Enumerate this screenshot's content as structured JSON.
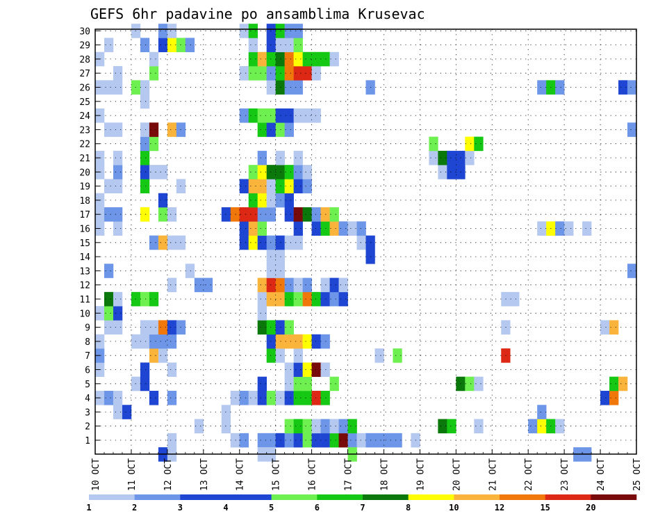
{
  "chart_data": {
    "type": "heatmap",
    "title": "GEFS 6hr padavine po ansamblima Krusevac",
    "xlabel": "",
    "ylabel": "",
    "x_tick_labels": [
      "10 OCT",
      "11 OCT",
      "12 OCT",
      "13 OCT",
      "14 OCT",
      "15 OCT",
      "16 OCT",
      "17 OCT",
      "18 OCT",
      "19 OCT",
      "20 OCT",
      "21 OCT",
      "22 OCT",
      "23 OCT",
      "24 OCT",
      "25 OCT"
    ],
    "y_tick_labels": [
      "1",
      "2",
      "3",
      "4",
      "5",
      "6",
      "7",
      "8",
      "9",
      "10",
      "11",
      "12",
      "13",
      "14",
      "15",
      "16",
      "17",
      "18",
      "19",
      "20",
      "21",
      "22",
      "23",
      "24",
      "25",
      "26",
      "27",
      "28",
      "29",
      "30"
    ],
    "time_step_hours": 6,
    "grid": true,
    "colorbar": {
      "labels": [
        "1",
        "2",
        "3",
        "4",
        "5",
        "6",
        "7",
        "8",
        "10",
        "12",
        "15",
        "20"
      ],
      "colors": [
        "#b4c8f0",
        "#6e96e8",
        "#1e46d2",
        "#1e46d2",
        "#6ef050",
        "#14c814",
        "#0a780a",
        "#ffff00",
        "#fab43c",
        "#f0780a",
        "#dc2814",
        "#780a0a"
      ]
    },
    "cells": [
      [
        1,
        8,
        1
      ],
      [
        1,
        15,
        1
      ],
      [
        1,
        16,
        2
      ],
      [
        1,
        18,
        2
      ],
      [
        1,
        19,
        2
      ],
      [
        1,
        20,
        3
      ],
      [
        1,
        21,
        2
      ],
      [
        1,
        22,
        3
      ],
      [
        1,
        23,
        5
      ],
      [
        1,
        24,
        3
      ],
      [
        1,
        25,
        3
      ],
      [
        1,
        26,
        6
      ],
      [
        1,
        27,
        20
      ],
      [
        1,
        28,
        2
      ],
      [
        1,
        29,
        1
      ],
      [
        1,
        30,
        2
      ],
      [
        1,
        31,
        2
      ],
      [
        1,
        32,
        2
      ],
      [
        1,
        33,
        2
      ],
      [
        1,
        35,
        1
      ],
      [
        2,
        11,
        1
      ],
      [
        2,
        14,
        1
      ],
      [
        2,
        21,
        5
      ],
      [
        2,
        22,
        6
      ],
      [
        2,
        23,
        5
      ],
      [
        2,
        24,
        1
      ],
      [
        2,
        25,
        2
      ],
      [
        2,
        26,
        1
      ],
      [
        2,
        27,
        2
      ],
      [
        2,
        28,
        6
      ],
      [
        2,
        38,
        7
      ],
      [
        2,
        39,
        6
      ],
      [
        2,
        42,
        1
      ],
      [
        2,
        48,
        2
      ],
      [
        2,
        49,
        8
      ],
      [
        2,
        50,
        6
      ],
      [
        2,
        51,
        1
      ],
      [
        3,
        2,
        1
      ],
      [
        3,
        3,
        3
      ],
      [
        3,
        14,
        1
      ],
      [
        3,
        49,
        2
      ],
      [
        4,
        0,
        1
      ],
      [
        4,
        1,
        2
      ],
      [
        4,
        2,
        1
      ],
      [
        4,
        6,
        3
      ],
      [
        4,
        8,
        2
      ],
      [
        4,
        15,
        1
      ],
      [
        4,
        16,
        2
      ],
      [
        4,
        17,
        1
      ],
      [
        4,
        18,
        3
      ],
      [
        4,
        19,
        5
      ],
      [
        4,
        20,
        1
      ],
      [
        4,
        21,
        3
      ],
      [
        4,
        22,
        6
      ],
      [
        4,
        23,
        6
      ],
      [
        4,
        24,
        15
      ],
      [
        4,
        25,
        6
      ],
      [
        4,
        56,
        3
      ],
      [
        4,
        57,
        12
      ],
      [
        5,
        4,
        1
      ],
      [
        5,
        5,
        3
      ],
      [
        5,
        18,
        3
      ],
      [
        5,
        21,
        1
      ],
      [
        5,
        22,
        5
      ],
      [
        5,
        23,
        5
      ],
      [
        5,
        26,
        5
      ],
      [
        5,
        40,
        7
      ],
      [
        5,
        41,
        5
      ],
      [
        5,
        42,
        1
      ],
      [
        5,
        57,
        6
      ],
      [
        5,
        58,
        10
      ],
      [
        6,
        0,
        1
      ],
      [
        6,
        5,
        3
      ],
      [
        6,
        8,
        1
      ],
      [
        6,
        21,
        1
      ],
      [
        6,
        22,
        3
      ],
      [
        6,
        23,
        8
      ],
      [
        6,
        24,
        20
      ],
      [
        6,
        25,
        1
      ],
      [
        7,
        0,
        2
      ],
      [
        7,
        6,
        10
      ],
      [
        7,
        7,
        1
      ],
      [
        7,
        19,
        6
      ],
      [
        7,
        20,
        1
      ],
      [
        7,
        22,
        1
      ],
      [
        7,
        31,
        1
      ],
      [
        7,
        33,
        5
      ],
      [
        7,
        45,
        15
      ],
      [
        8,
        0,
        1
      ],
      [
        8,
        4,
        1
      ],
      [
        8,
        5,
        1
      ],
      [
        8,
        6,
        2
      ],
      [
        8,
        7,
        2
      ],
      [
        8,
        8,
        2
      ],
      [
        8,
        19,
        3
      ],
      [
        8,
        20,
        10
      ],
      [
        8,
        21,
        10
      ],
      [
        8,
        22,
        10
      ],
      [
        8,
        23,
        8
      ],
      [
        8,
        24,
        3
      ],
      [
        8,
        25,
        2
      ],
      [
        9,
        1,
        1
      ],
      [
        9,
        2,
        1
      ],
      [
        9,
        5,
        1
      ],
      [
        9,
        6,
        1
      ],
      [
        9,
        7,
        12
      ],
      [
        9,
        8,
        3
      ],
      [
        9,
        9,
        2
      ],
      [
        9,
        18,
        7
      ],
      [
        9,
        19,
        6
      ],
      [
        9,
        20,
        3
      ],
      [
        9,
        21,
        5
      ],
      [
        9,
        45,
        1
      ],
      [
        9,
        56,
        1
      ],
      [
        9,
        57,
        10
      ],
      [
        10,
        0,
        1
      ],
      [
        10,
        1,
        5
      ],
      [
        10,
        2,
        3
      ],
      [
        10,
        18,
        1
      ],
      [
        11,
        1,
        7
      ],
      [
        11,
        2,
        1
      ],
      [
        11,
        4,
        6
      ],
      [
        11,
        5,
        5
      ],
      [
        11,
        6,
        6
      ],
      [
        11,
        18,
        1
      ],
      [
        11,
        19,
        10
      ],
      [
        11,
        20,
        10
      ],
      [
        11,
        21,
        6
      ],
      [
        11,
        22,
        5
      ],
      [
        11,
        23,
        12
      ],
      [
        11,
        24,
        6
      ],
      [
        11,
        25,
        3
      ],
      [
        11,
        26,
        2
      ],
      [
        11,
        27,
        3
      ],
      [
        11,
        45,
        1
      ],
      [
        11,
        46,
        1
      ],
      [
        12,
        8,
        1
      ],
      [
        12,
        11,
        2
      ],
      [
        12,
        12,
        2
      ],
      [
        12,
        18,
        10
      ],
      [
        12,
        19,
        15
      ],
      [
        12,
        20,
        12
      ],
      [
        12,
        21,
        2
      ],
      [
        12,
        22,
        1
      ],
      [
        12,
        23,
        2
      ],
      [
        12,
        25,
        1
      ],
      [
        12,
        26,
        3
      ],
      [
        12,
        27,
        1
      ],
      [
        13,
        1,
        2
      ],
      [
        13,
        10,
        1
      ],
      [
        13,
        19,
        1
      ],
      [
        13,
        20,
        1
      ],
      [
        13,
        59,
        2
      ],
      [
        14,
        19,
        1
      ],
      [
        14,
        20,
        1
      ],
      [
        14,
        30,
        3
      ],
      [
        15,
        6,
        2
      ],
      [
        15,
        7,
        10
      ],
      [
        15,
        8,
        1
      ],
      [
        15,
        9,
        1
      ],
      [
        15,
        16,
        3
      ],
      [
        15,
        17,
        8
      ],
      [
        15,
        18,
        3
      ],
      [
        15,
        19,
        2
      ],
      [
        15,
        20,
        3
      ],
      [
        15,
        21,
        1
      ],
      [
        15,
        22,
        1
      ],
      [
        15,
        29,
        1
      ],
      [
        15,
        30,
        3
      ],
      [
        16,
        0,
        1
      ],
      [
        16,
        2,
        1
      ],
      [
        16,
        16,
        3
      ],
      [
        16,
        17,
        10
      ],
      [
        16,
        18,
        5
      ],
      [
        16,
        22,
        3
      ],
      [
        16,
        24,
        3
      ],
      [
        16,
        25,
        6
      ],
      [
        16,
        26,
        10
      ],
      [
        16,
        27,
        2
      ],
      [
        16,
        28,
        1
      ],
      [
        16,
        29,
        2
      ],
      [
        16,
        49,
        1
      ],
      [
        16,
        50,
        8
      ],
      [
        16,
        51,
        2
      ],
      [
        16,
        52,
        1
      ],
      [
        16,
        54,
        1
      ],
      [
        17,
        0,
        1
      ],
      [
        17,
        1,
        2
      ],
      [
        17,
        2,
        2
      ],
      [
        17,
        5,
        8
      ],
      [
        17,
        7,
        5
      ],
      [
        17,
        8,
        1
      ],
      [
        17,
        14,
        3
      ],
      [
        17,
        15,
        12
      ],
      [
        17,
        16,
        15
      ],
      [
        17,
        17,
        15
      ],
      [
        17,
        18,
        2
      ],
      [
        17,
        19,
        2
      ],
      [
        17,
        21,
        3
      ],
      [
        17,
        22,
        20
      ],
      [
        17,
        23,
        7
      ],
      [
        17,
        24,
        2
      ],
      [
        17,
        25,
        10
      ],
      [
        17,
        26,
        5
      ],
      [
        18,
        0,
        1
      ],
      [
        18,
        7,
        3
      ],
      [
        18,
        17,
        6
      ],
      [
        18,
        18,
        8
      ],
      [
        18,
        19,
        1
      ],
      [
        18,
        20,
        2
      ],
      [
        18,
        21,
        3
      ],
      [
        19,
        1,
        1
      ],
      [
        19,
        2,
        1
      ],
      [
        19,
        5,
        6
      ],
      [
        19,
        9,
        1
      ],
      [
        19,
        16,
        3
      ],
      [
        19,
        17,
        10
      ],
      [
        19,
        18,
        10
      ],
      [
        19,
        19,
        1
      ],
      [
        19,
        20,
        6
      ],
      [
        19,
        21,
        8
      ],
      [
        19,
        22,
        3
      ],
      [
        19,
        23,
        2
      ],
      [
        20,
        0,
        1
      ],
      [
        20,
        2,
        2
      ],
      [
        20,
        5,
        3
      ],
      [
        20,
        6,
        1
      ],
      [
        20,
        7,
        1
      ],
      [
        20,
        17,
        5
      ],
      [
        20,
        18,
        8
      ],
      [
        20,
        19,
        7
      ],
      [
        20,
        20,
        7
      ],
      [
        20,
        21,
        6
      ],
      [
        20,
        22,
        2
      ],
      [
        20,
        23,
        1
      ],
      [
        20,
        38,
        1
      ],
      [
        20,
        39,
        3
      ],
      [
        20,
        40,
        3
      ],
      [
        21,
        0,
        1
      ],
      [
        21,
        2,
        1
      ],
      [
        21,
        5,
        6
      ],
      [
        21,
        18,
        2
      ],
      [
        21,
        20,
        1
      ],
      [
        21,
        22,
        1
      ],
      [
        21,
        37,
        1
      ],
      [
        21,
        38,
        7
      ],
      [
        21,
        39,
        3
      ],
      [
        21,
        40,
        3
      ],
      [
        21,
        41,
        1
      ],
      [
        22,
        5,
        2
      ],
      [
        22,
        6,
        5
      ],
      [
        22,
        37,
        5
      ],
      [
        22,
        41,
        8
      ],
      [
        22,
        42,
        6
      ],
      [
        23,
        1,
        1
      ],
      [
        23,
        2,
        1
      ],
      [
        23,
        5,
        1
      ],
      [
        23,
        6,
        20
      ],
      [
        23,
        8,
        10
      ],
      [
        23,
        9,
        2
      ],
      [
        23,
        18,
        6
      ],
      [
        23,
        19,
        3
      ],
      [
        23,
        20,
        5
      ],
      [
        23,
        21,
        2
      ],
      [
        23,
        59,
        2
      ],
      [
        24,
        0,
        1
      ],
      [
        24,
        16,
        2
      ],
      [
        24,
        17,
        6
      ],
      [
        24,
        18,
        5
      ],
      [
        24,
        19,
        5
      ],
      [
        24,
        20,
        3
      ],
      [
        24,
        21,
        3
      ],
      [
        24,
        22,
        1
      ],
      [
        24,
        23,
        1
      ],
      [
        24,
        24,
        1
      ],
      [
        25,
        5,
        1
      ],
      [
        26,
        0,
        1
      ],
      [
        26,
        1,
        1
      ],
      [
        26,
        2,
        1
      ],
      [
        26,
        4,
        5
      ],
      [
        26,
        5,
        1
      ],
      [
        26,
        19,
        1
      ],
      [
        26,
        20,
        7
      ],
      [
        26,
        21,
        2
      ],
      [
        26,
        22,
        2
      ],
      [
        26,
        30,
        2
      ],
      [
        26,
        49,
        2
      ],
      [
        26,
        50,
        6
      ],
      [
        26,
        51,
        2
      ],
      [
        26,
        58,
        3
      ],
      [
        26,
        59,
        2
      ],
      [
        27,
        2,
        1
      ],
      [
        27,
        6,
        5
      ],
      [
        27,
        16,
        1
      ],
      [
        27,
        17,
        5
      ],
      [
        27,
        18,
        5
      ],
      [
        27,
        19,
        2
      ],
      [
        27,
        20,
        6
      ],
      [
        27,
        21,
        12
      ],
      [
        27,
        22,
        15
      ],
      [
        27,
        23,
        15
      ],
      [
        27,
        24,
        1
      ],
      [
        28,
        0,
        1
      ],
      [
        28,
        6,
        1
      ],
      [
        28,
        17,
        6
      ],
      [
        28,
        18,
        10
      ],
      [
        28,
        19,
        6
      ],
      [
        28,
        20,
        7
      ],
      [
        28,
        21,
        12
      ],
      [
        28,
        22,
        8
      ],
      [
        28,
        23,
        6
      ],
      [
        28,
        24,
        6
      ],
      [
        28,
        25,
        6
      ],
      [
        28,
        26,
        1
      ],
      [
        29,
        1,
        1
      ],
      [
        29,
        5,
        2
      ],
      [
        29,
        7,
        3
      ],
      [
        29,
        8,
        8
      ],
      [
        29,
        9,
        5
      ],
      [
        29,
        10,
        2
      ],
      [
        29,
        17,
        1
      ],
      [
        29,
        19,
        3
      ],
      [
        29,
        20,
        1
      ],
      [
        29,
        21,
        1
      ],
      [
        29,
        22,
        5
      ],
      [
        30,
        4,
        1
      ],
      [
        30,
        7,
        2
      ],
      [
        30,
        8,
        1
      ],
      [
        30,
        16,
        1
      ],
      [
        30,
        17,
        6
      ],
      [
        30,
        19,
        3
      ],
      [
        30,
        20,
        6
      ],
      [
        30,
        21,
        2
      ],
      [
        30,
        22,
        2
      ],
      [
        0,
        7,
        3
      ],
      [
        0,
        8,
        1
      ],
      [
        0,
        18,
        1
      ],
      [
        0,
        19,
        1
      ],
      [
        0,
        28,
        5
      ],
      [
        0,
        53,
        2
      ],
      [
        0,
        54,
        2
      ]
    ]
  }
}
